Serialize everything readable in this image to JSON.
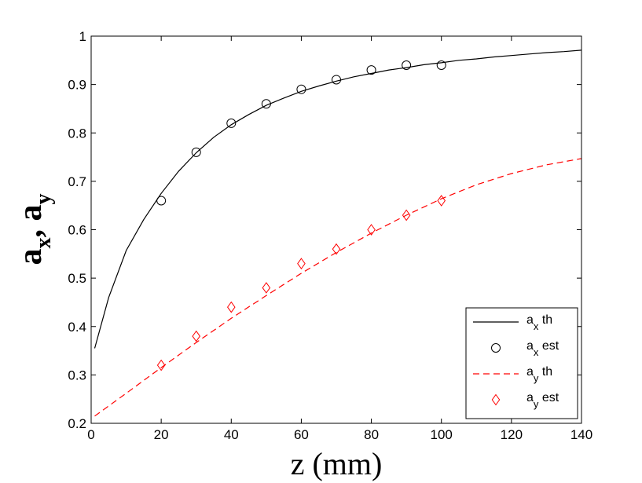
{
  "chart_data": {
    "type": "line",
    "xlabel": "z (mm)",
    "ylabel": {
      "base1": "a",
      "sub1": "x",
      "sep": ", ",
      "base2": "a",
      "sub2": "y"
    },
    "xlim": [
      0,
      140
    ],
    "ylim": [
      0.2,
      1.0
    ],
    "xticks": [
      "0",
      "20",
      "40",
      "60",
      "80",
      "100",
      "120",
      "140"
    ],
    "yticks": [
      "0.2",
      "0.3",
      "0.4",
      "0.5",
      "0.6",
      "0.7",
      "0.8",
      "0.9",
      "1"
    ],
    "grid": false,
    "legend_position": "bottom-right",
    "series": [
      {
        "name": {
          "base": "a",
          "sub": "x",
          "suffix": " th"
        },
        "kind": "line",
        "style": "solid",
        "color": "#000000",
        "x": [
          1,
          5,
          10,
          15,
          20,
          25,
          30,
          35,
          40,
          45,
          50,
          55,
          60,
          65,
          70,
          75,
          80,
          85,
          90,
          95,
          100,
          105,
          110,
          115,
          120,
          125,
          130,
          135,
          140
        ],
        "y": [
          0.355,
          0.46,
          0.557,
          0.621,
          0.675,
          0.721,
          0.759,
          0.791,
          0.817,
          0.838,
          0.857,
          0.872,
          0.886,
          0.897,
          0.907,
          0.916,
          0.923,
          0.93,
          0.935,
          0.941,
          0.945,
          0.95,
          0.953,
          0.957,
          0.96,
          0.963,
          0.966,
          0.968,
          0.971
        ]
      },
      {
        "name": {
          "base": "a",
          "sub": "x",
          "suffix": " est"
        },
        "kind": "scatter",
        "marker": "circle",
        "color": "#000000",
        "x": [
          20,
          30,
          40,
          50,
          60,
          70,
          80,
          90,
          100
        ],
        "y": [
          0.66,
          0.76,
          0.82,
          0.86,
          0.89,
          0.91,
          0.93,
          0.94,
          0.94
        ]
      },
      {
        "name": {
          "base": "a",
          "sub": "y",
          "suffix": " th"
        },
        "kind": "line",
        "style": "dashed",
        "color": "#ff0000",
        "x": [
          1,
          10,
          20,
          30,
          40,
          50,
          60,
          70,
          80,
          90,
          100,
          110,
          120,
          130,
          140
        ],
        "y": [
          0.215,
          0.262,
          0.315,
          0.367,
          0.417,
          0.464,
          0.51,
          0.553,
          0.593,
          0.63,
          0.664,
          0.693,
          0.716,
          0.734,
          0.747
        ]
      },
      {
        "name": {
          "base": "a",
          "sub": "y",
          "suffix": " est"
        },
        "kind": "scatter",
        "marker": "diamond",
        "color": "#ff0000",
        "x": [
          20,
          30,
          40,
          50,
          60,
          70,
          80,
          90,
          100
        ],
        "y": [
          0.32,
          0.38,
          0.44,
          0.48,
          0.53,
          0.56,
          0.6,
          0.63,
          0.66
        ]
      }
    ]
  }
}
